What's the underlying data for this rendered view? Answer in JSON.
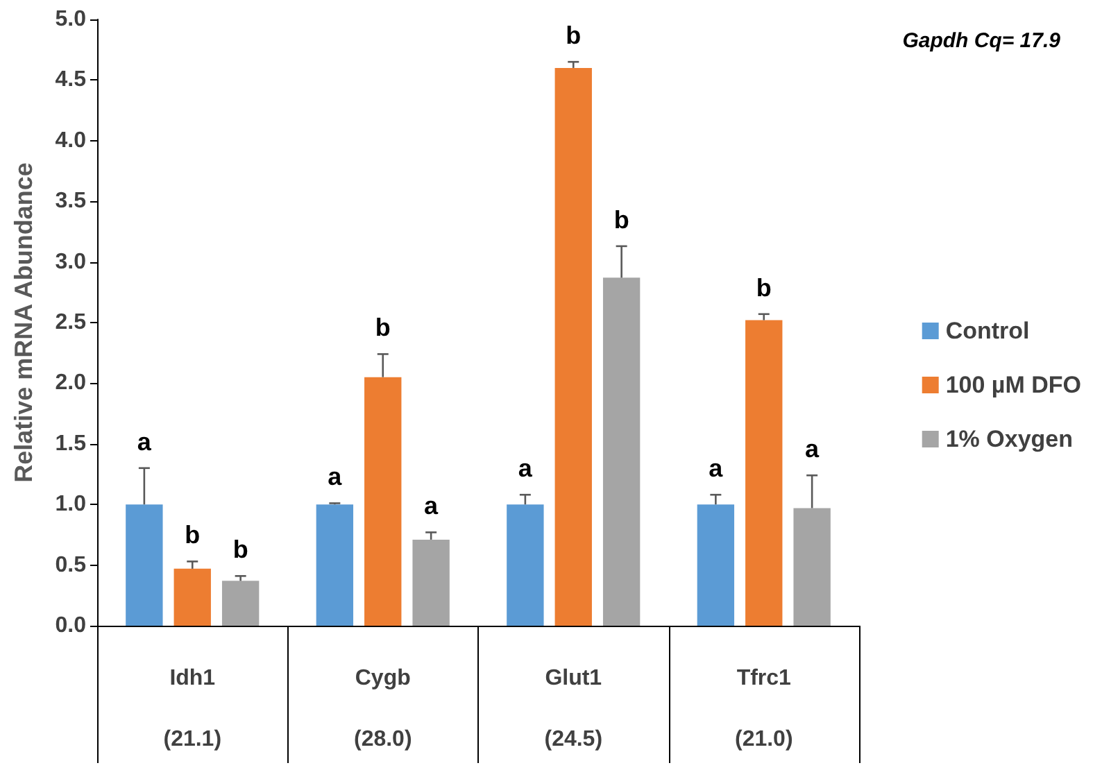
{
  "chart_data": {
    "type": "bar",
    "ylabel": "Relative mRNA Abundance",
    "categories": [
      "Idh1\n(21.1)",
      "Cygb\n(28.0)",
      "Glut1\n(24.5)",
      "Tfrc1\n(21.0)"
    ],
    "series": [
      {
        "name": "Control",
        "color": "#5b9bd5",
        "values": [
          1.0,
          1.0,
          1.0,
          1.0
        ],
        "errors": [
          0.3,
          0.01,
          0.08,
          0.08
        ],
        "value_labels": [
          "a",
          "a",
          "a",
          "a"
        ]
      },
      {
        "name": "100 µM DFO",
        "color": "#ed7d31",
        "values": [
          0.47,
          2.05,
          4.6,
          2.52
        ],
        "errors": [
          0.06,
          0.19,
          0.05,
          0.05
        ],
        "value_labels": [
          "b",
          "b",
          "b",
          "b"
        ]
      },
      {
        "name": "1% Oxygen",
        "color": "#a5a5a5",
        "values": [
          0.37,
          0.71,
          2.87,
          0.97
        ],
        "errors": [
          0.04,
          0.06,
          0.26,
          0.27
        ],
        "value_labels": [
          "b",
          "a",
          "b",
          "a"
        ]
      }
    ],
    "ylim": [
      0,
      5
    ],
    "yticks": [
      {
        "value": 0,
        "label": "0.0"
      },
      {
        "value": 0.5,
        "label": "0.5"
      },
      {
        "value": 1,
        "label": "1.0"
      },
      {
        "value": 1.5,
        "label": "1.5"
      },
      {
        "value": 2,
        "label": "2.0"
      },
      {
        "value": 2.5,
        "label": "2.5"
      },
      {
        "value": 3,
        "label": "3.0"
      },
      {
        "value": 3.5,
        "label": "3.5"
      },
      {
        "value": 4,
        "label": "4.0"
      },
      {
        "value": 4.5,
        "label": "4.5"
      },
      {
        "value": 5,
        "label": "5.0"
      }
    ],
    "grid": false,
    "legend": "right",
    "annotations": [
      "Gapdh Cq= 17.9"
    ]
  }
}
